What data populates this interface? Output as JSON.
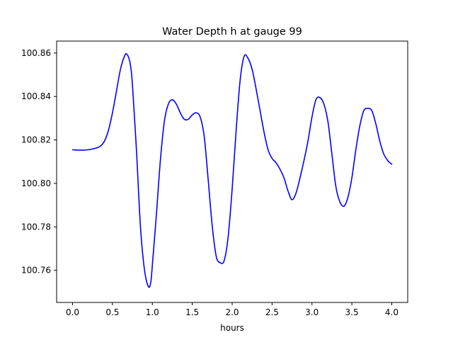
{
  "chart_data": {
    "type": "line",
    "title": "Water Depth h at gauge 99",
    "xlabel": "hours",
    "ylabel": "",
    "xlim": [
      -0.2,
      4.2
    ],
    "ylim": [
      100.7452,
      100.8655
    ],
    "grid": false,
    "legend": "none",
    "line_color": "#0000ff",
    "x_ticks": [
      0.0,
      0.5,
      1.0,
      1.5,
      2.0,
      2.5,
      3.0,
      3.5,
      4.0
    ],
    "x_tick_labels": [
      "0.0",
      "0.5",
      "1.0",
      "1.5",
      "2.0",
      "2.5",
      "3.0",
      "3.5",
      "4.0"
    ],
    "y_ticks": [
      100.76,
      100.78,
      100.8,
      100.82,
      100.84,
      100.86
    ],
    "y_tick_labels": [
      "100.76",
      "100.78",
      "100.80",
      "100.82",
      "100.84",
      "100.86"
    ],
    "series": [
      {
        "x": [
          0.0,
          0.1,
          0.2,
          0.3,
          0.35,
          0.4,
          0.45,
          0.5,
          0.55,
          0.6,
          0.65,
          0.68,
          0.72,
          0.75,
          0.8,
          0.85,
          0.9,
          0.95,
          0.98,
          1.0,
          1.05,
          1.1,
          1.15,
          1.2,
          1.25,
          1.3,
          1.35,
          1.4,
          1.45,
          1.5,
          1.55,
          1.6,
          1.65,
          1.7,
          1.75,
          1.8,
          1.85,
          1.9,
          1.95,
          2.0,
          2.05,
          2.1,
          2.15,
          2.2,
          2.25,
          2.3,
          2.35,
          2.4,
          2.45,
          2.5,
          2.55,
          2.6,
          2.65,
          2.7,
          2.75,
          2.8,
          2.85,
          2.9,
          2.95,
          3.0,
          3.05,
          3.1,
          3.15,
          3.2,
          3.25,
          3.3,
          3.35,
          3.4,
          3.45,
          3.5,
          3.55,
          3.6,
          3.65,
          3.7,
          3.75,
          3.8,
          3.85,
          3.9,
          3.95,
          4.0
        ],
        "y": [
          100.8155,
          100.8153,
          100.8155,
          100.8163,
          100.8172,
          100.8195,
          100.8245,
          100.8325,
          100.8425,
          100.8525,
          100.8585,
          100.8595,
          100.8555,
          100.8455,
          100.8155,
          100.7805,
          100.7605,
          100.7525,
          100.7545,
          100.7625,
          100.7855,
          100.8105,
          100.8285,
          100.8365,
          100.8385,
          100.8365,
          100.8325,
          100.8295,
          100.8295,
          100.8315,
          100.8325,
          100.8305,
          100.8215,
          100.8015,
          100.7805,
          100.7665,
          100.7635,
          100.7645,
          100.7755,
          100.7975,
          100.8245,
          100.8475,
          100.8585,
          100.8575,
          100.8525,
          100.8435,
          100.8335,
          100.8235,
          100.8155,
          100.8115,
          100.8095,
          100.8065,
          100.8025,
          100.7965,
          100.7925,
          100.7955,
          100.8025,
          100.8105,
          100.8195,
          100.8305,
          100.8385,
          100.8395,
          100.8365,
          100.8285,
          100.8135,
          100.7985,
          100.7915,
          100.7895,
          100.7935,
          100.8025,
          100.8155,
          100.8265,
          100.8335,
          100.8345,
          100.8335,
          100.8275,
          100.8195,
          100.8135,
          100.8105,
          100.8088
        ]
      }
    ]
  }
}
